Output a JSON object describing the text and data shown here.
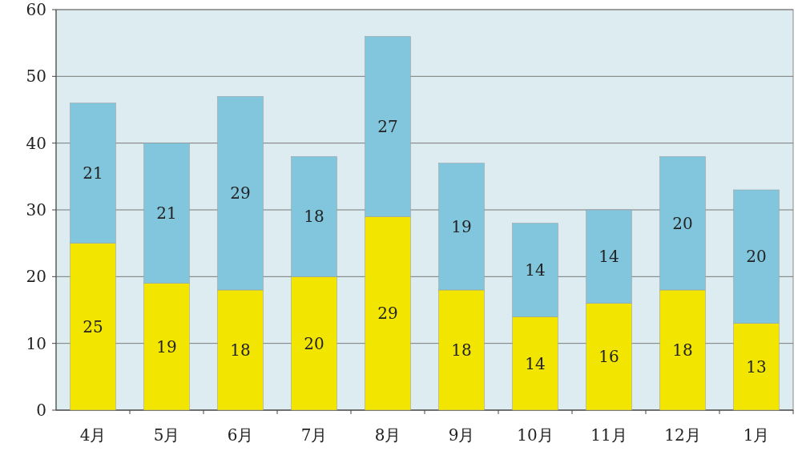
{
  "chart_data": {
    "type": "bar",
    "stacked": true,
    "data_labels": true,
    "grid": "y",
    "categories": [
      "4月",
      "5月",
      "6月",
      "7月",
      "8月",
      "9月",
      "10月",
      "11月",
      "12月",
      "1月"
    ],
    "series": [
      {
        "color": "#f2e600",
        "values": [
          25,
          19,
          18,
          20,
          29,
          18,
          14,
          16,
          18,
          13
        ]
      },
      {
        "color": "#82c6de",
        "values": [
          21,
          21,
          29,
          18,
          27,
          19,
          14,
          14,
          20,
          20
        ]
      }
    ],
    "ylim": [
      0,
      60
    ],
    "yticks": [
      0,
      10,
      20,
      30,
      40,
      50,
      60
    ]
  }
}
